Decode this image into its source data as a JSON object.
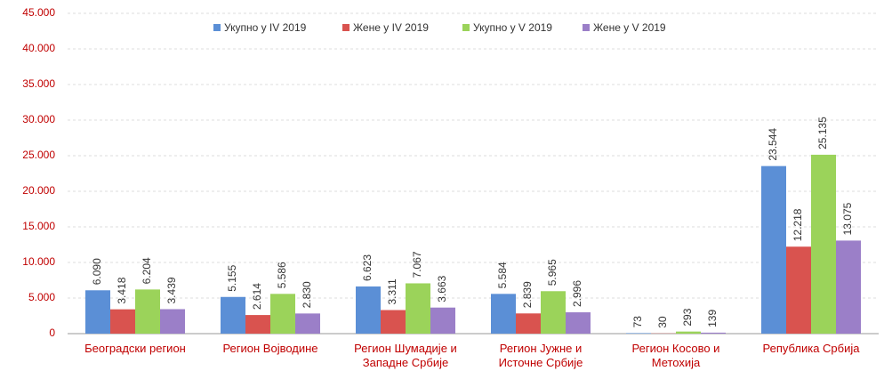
{
  "chart_data": {
    "type": "bar",
    "categories": [
      "Београдски регион",
      "Регион Војводине",
      "Регион Шумадије и Западне Србије",
      "Регион Јужне и Источне Србије",
      "Регион Косово и Метохија",
      "Република Србија"
    ],
    "series": [
      {
        "name": "Укупно у IV 2019",
        "color": "#5b8fd6",
        "values": [
          6090,
          5155,
          6623,
          5584,
          73,
          23544
        ],
        "value_labels": [
          "6.090",
          "5.155",
          "6.623",
          "5.584",
          "73",
          "23.544"
        ]
      },
      {
        "name": "Жене у IV 2019",
        "color": "#d9534f",
        "values": [
          3418,
          2614,
          3311,
          2839,
          30,
          12218
        ],
        "value_labels": [
          "3.418",
          "2.614",
          "3.311",
          "2.839",
          "30",
          "12.218"
        ]
      },
      {
        "name": "Укупно у V 2019",
        "color": "#9bd35a",
        "values": [
          6204,
          5586,
          7067,
          5965,
          293,
          25135
        ],
        "value_labels": [
          "6.204",
          "5.586",
          "7.067",
          "5.965",
          "293",
          "25.135"
        ]
      },
      {
        "name": "Жене у V 2019",
        "color": "#9b7fc8",
        "values": [
          3439,
          2830,
          3663,
          2996,
          139,
          13075
        ],
        "value_labels": [
          "3.439",
          "2.830",
          "3.663",
          "2.996",
          "139",
          "13.075"
        ]
      }
    ],
    "ylim": [
      0,
      45000
    ],
    "yticks": [
      0,
      {
        "value": 5000,
        "label": "5.000"
      },
      {
        "value": 10000,
        "label": "10.000"
      },
      {
        "value": 15000,
        "label": "15.000"
      },
      {
        "value": 20000,
        "label": "20.000"
      },
      {
        "value": 25000,
        "label": "25.000"
      },
      {
        "value": 30000,
        "label": "30.000"
      },
      {
        "value": 35000,
        "label": "35.000"
      },
      {
        "value": 40000,
        "label": "40.000"
      },
      {
        "value": 45000,
        "label": "45.000"
      }
    ],
    "grid": true,
    "legend": "top"
  }
}
